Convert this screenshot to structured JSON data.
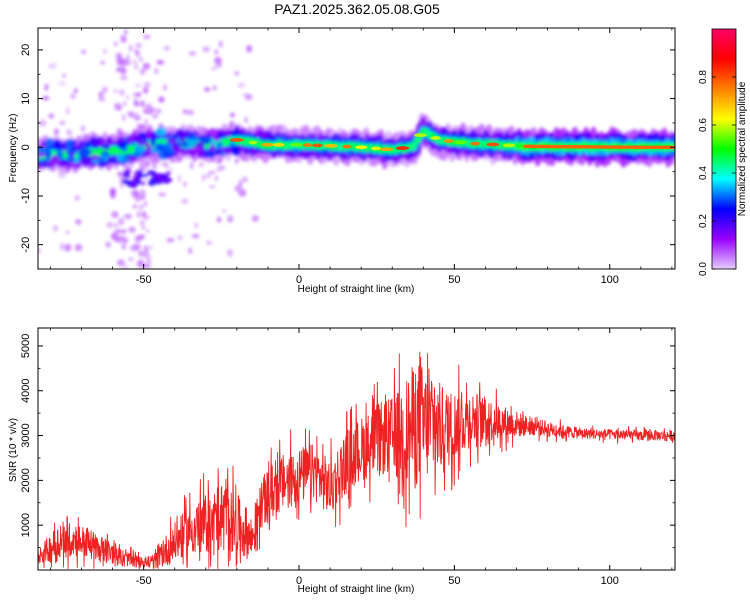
{
  "title": "PAZ1.2025.362.05.08.G05",
  "chart_data": [
    {
      "type": "heatmap",
      "title": "PAZ1.2025.362.05.08.G05",
      "xlabel": "Height of straight line (km)",
      "ylabel": "Frequency (Hz)",
      "xlim": [
        -84,
        121
      ],
      "ylim": [
        -25,
        24.5
      ],
      "xticks": [
        -50,
        0,
        50,
        100
      ],
      "yticks": [
        -20,
        -10,
        0,
        10,
        20
      ],
      "xtick_labels": [
        "-50",
        "0",
        "50",
        "100"
      ],
      "ytick_labels": [
        "-20",
        "-10",
        "0",
        "10",
        "20"
      ],
      "ridge": {
        "x": [
          -84,
          -75,
          -65,
          -55,
          -48,
          -40,
          -32,
          -25,
          -20,
          -10,
          0,
          10,
          20,
          30,
          37,
          40,
          45,
          55,
          65,
          72,
          90,
          110,
          121
        ],
        "freq": [
          -1.5,
          -1.5,
          -1,
          -0.5,
          0.5,
          1,
          0.5,
          1,
          1.5,
          0.5,
          0.5,
          0.3,
          0,
          -0.5,
          0.2,
          3.5,
          1.5,
          0.8,
          0.5,
          0.2,
          0.1,
          0,
          0
        ]
      },
      "colorbar": {
        "label": "Normalized spectral amplitude",
        "range": [
          0,
          1
        ],
        "ticks": [
          "0.0",
          "0.2",
          "0.4",
          "0.6",
          "0.8"
        ],
        "tick_values": [
          0,
          0.2,
          0.4,
          0.6,
          0.8
        ],
        "colors": [
          "#e6ccff",
          "#9900ff",
          "#0000ff",
          "#00ffff",
          "#00ff00",
          "#ffff00",
          "#ff8000",
          "#ff0000",
          "#ff0066"
        ]
      }
    },
    {
      "type": "line",
      "xlabel": "Height of straight line (km)",
      "ylabel": "SNR (10 * v/v)",
      "xlim": [
        -84,
        121
      ],
      "ylim": [
        0,
        5400
      ],
      "xticks": [
        -50,
        0,
        50,
        100
      ],
      "yticks": [
        1000,
        2000,
        3000,
        4000,
        5000
      ],
      "xtick_labels": [
        "-50",
        "0",
        "50",
        "100"
      ],
      "ytick_labels": [
        "1000",
        "2000",
        "3000",
        "4000",
        "5000"
      ],
      "series": [
        {
          "name": "SNR",
          "color": "#ee2222",
          "envelope_x": [
            -84,
            -78,
            -72,
            -65,
            -58,
            -50,
            -46,
            -42,
            -35,
            -28,
            -24,
            -20,
            -15,
            -12,
            -8,
            -4,
            0,
            5,
            10,
            15,
            20,
            25,
            30,
            35,
            38,
            42,
            48,
            55,
            65,
            75,
            90,
            110,
            121
          ],
          "envelope_mean": [
            300,
            600,
            700,
            500,
            300,
            150,
            200,
            500,
            900,
            1100,
            1200,
            1000,
            700,
            1500,
            1800,
            2000,
            2100,
            2200,
            1800,
            2400,
            2700,
            2900,
            3000,
            3100,
            3300,
            3200,
            3150,
            3400,
            3300,
            3200,
            3050,
            3000,
            3000
          ],
          "envelope_spread": [
            200,
            500,
            500,
            400,
            250,
            150,
            250,
            500,
            700,
            900,
            1000,
            900,
            600,
            700,
            800,
            800,
            800,
            800,
            800,
            900,
            900,
            1000,
            1100,
            1600,
            1800,
            1500,
            1100,
            800,
            500,
            250,
            150,
            150,
            150
          ]
        }
      ]
    }
  ]
}
